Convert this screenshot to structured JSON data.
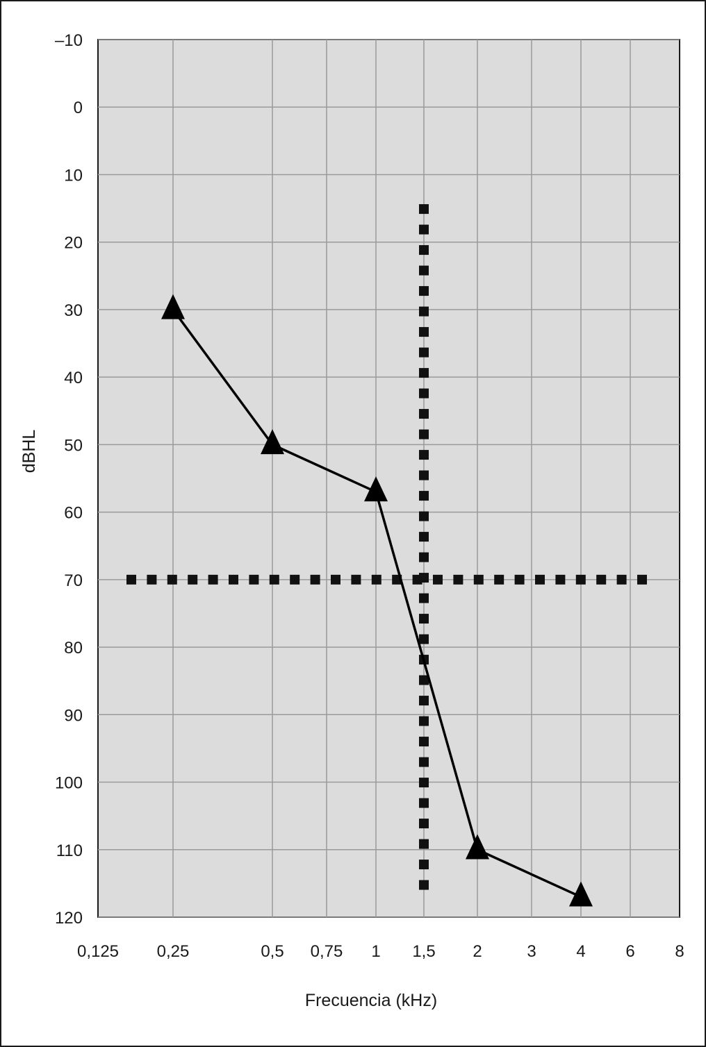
{
  "chart_data": {
    "type": "line",
    "title": "",
    "xlabel": "Frecuencia (kHz)",
    "ylabel": "dBHL",
    "x_ticks": [
      "0,125",
      "0,25",
      "0,5",
      "0,75",
      "1",
      "1,5",
      "2",
      "3",
      "4",
      "6",
      "8"
    ],
    "y_ticks": [
      "–10",
      "0",
      "10",
      "20",
      "30",
      "40",
      "50",
      "60",
      "70",
      "80",
      "90",
      "100",
      "110",
      "120"
    ],
    "ylim": [
      -10,
      120
    ],
    "y_inverted": true,
    "grid": true,
    "series": [
      {
        "x": [
          "0,25",
          "0,5",
          "1",
          "2",
          "4"
        ],
        "values": [
          30,
          50,
          57,
          110,
          117
        ],
        "marker": "triangle",
        "color": "#000000"
      }
    ],
    "reference_lines": [
      {
        "orientation": "horizontal",
        "y": 70,
        "style": "dotted"
      },
      {
        "orientation": "vertical",
        "x": "1,5",
        "y_range": [
          15,
          118
        ],
        "style": "dotted"
      }
    ]
  },
  "colors": {
    "plot_background": "#dcdcdc",
    "grid": "#9a9a9a",
    "line": "#000000"
  }
}
